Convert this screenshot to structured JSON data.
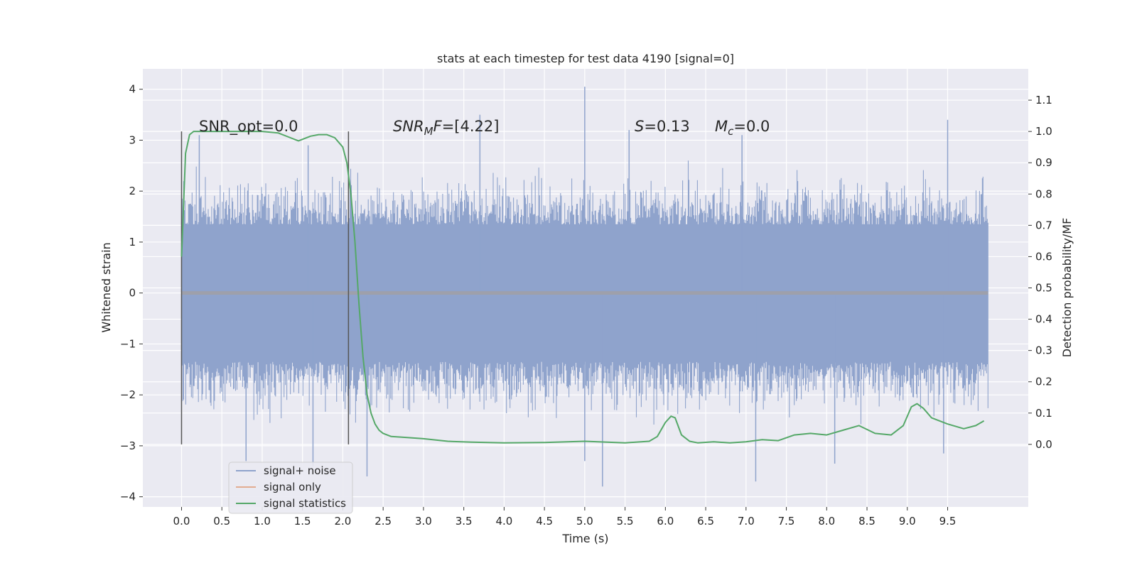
{
  "chart_data": {
    "type": "line",
    "title": "stats at each timestep for test data 4190 [signal=0]",
    "xlabel": "Time (s)",
    "ylabel": "Whitened strain",
    "ylabel_right": "Detection probability/MF",
    "xlim": [
      -0.48,
      10.5
    ],
    "ylim": [
      -4.2,
      4.4
    ],
    "ylim_right": [
      -0.2,
      1.2
    ],
    "x_ticks": [
      "0.0",
      "0.5",
      "1.0",
      "1.5",
      "2.0",
      "2.5",
      "3.0",
      "3.5",
      "4.0",
      "4.5",
      "5.0",
      "5.5",
      "6.0",
      "6.5",
      "7.0",
      "7.5",
      "8.0",
      "8.5",
      "9.0",
      "9.5"
    ],
    "y_ticks_left": [
      "−4",
      "−3",
      "−2",
      "−1",
      "0",
      "1",
      "2",
      "3",
      "4"
    ],
    "y_ticks_right": [
      "0.0",
      "0.1",
      "0.2",
      "0.3",
      "0.4",
      "0.5",
      "0.6",
      "0.7",
      "0.8",
      "0.9",
      "1.0",
      "1.1"
    ],
    "grid": true,
    "legend_position": "lower-left",
    "colors": {
      "plot_bg": "#eaeaf2",
      "grid": "#ffffff",
      "signal_noise": "#8fa3cc",
      "signal_only": "#dd8452",
      "statistics": "#55a868",
      "vline": "#555555"
    },
    "series": [
      {
        "name": "signal+ noise",
        "axis": "left",
        "x_range": [
          0.0,
          10.0
        ],
        "envelope_max": 2.0,
        "envelope_min": -2.1,
        "spikes": [
          {
            "x": 0.22,
            "y": 3.1
          },
          {
            "x": 1.57,
            "y": 2.9
          },
          {
            "x": 3.7,
            "y": 3.5
          },
          {
            "x": 5.0,
            "y": 4.05
          },
          {
            "x": 5.55,
            "y": 3.2
          },
          {
            "x": 6.95,
            "y": 3.1
          },
          {
            "x": 9.5,
            "y": 3.4
          },
          {
            "x": 0.8,
            "y": -3.3
          },
          {
            "x": 1.63,
            "y": -3.4
          },
          {
            "x": 2.3,
            "y": -3.6
          },
          {
            "x": 5.0,
            "y": -3.3
          },
          {
            "x": 5.22,
            "y": -3.8
          },
          {
            "x": 7.12,
            "y": -3.7
          },
          {
            "x": 8.1,
            "y": -3.35
          },
          {
            "x": 9.45,
            "y": -3.15
          }
        ]
      },
      {
        "name": "signal only",
        "axis": "left",
        "x": [
          0.0,
          10.0
        ],
        "y": [
          0.0,
          0.0
        ]
      },
      {
        "name": "signal statistics",
        "axis": "right",
        "x": [
          0.0,
          0.05,
          0.1,
          0.15,
          0.2,
          0.3,
          0.5,
          0.8,
          1.0,
          1.2,
          1.35,
          1.45,
          1.5,
          1.6,
          1.7,
          1.8,
          1.9,
          2.0,
          2.05,
          2.1,
          2.15,
          2.2,
          2.25,
          2.3,
          2.35,
          2.4,
          2.45,
          2.5,
          2.6,
          2.8,
          3.0,
          3.3,
          3.6,
          4.0,
          4.5,
          5.0,
          5.5,
          5.8,
          5.9,
          6.0,
          6.07,
          6.12,
          6.2,
          6.3,
          6.4,
          6.6,
          6.8,
          7.0,
          7.2,
          7.4,
          7.6,
          7.8,
          8.0,
          8.2,
          8.4,
          8.6,
          8.8,
          8.95,
          9.05,
          9.12,
          9.2,
          9.3,
          9.5,
          9.7,
          9.85,
          9.95
        ],
        "y": [
          0.6,
          0.93,
          0.99,
          1.0,
          1.0,
          1.0,
          1.0,
          1.0,
          1.0,
          0.995,
          0.98,
          0.97,
          0.975,
          0.985,
          0.99,
          0.99,
          0.98,
          0.95,
          0.9,
          0.8,
          0.65,
          0.45,
          0.28,
          0.16,
          0.1,
          0.065,
          0.045,
          0.035,
          0.025,
          0.022,
          0.018,
          0.01,
          0.007,
          0.005,
          0.006,
          0.01,
          0.005,
          0.01,
          0.025,
          0.07,
          0.09,
          0.085,
          0.03,
          0.01,
          0.005,
          0.008,
          0.005,
          0.008,
          0.015,
          0.012,
          0.03,
          0.035,
          0.03,
          0.045,
          0.06,
          0.035,
          0.03,
          0.06,
          0.12,
          0.13,
          0.115,
          0.085,
          0.065,
          0.05,
          0.06,
          0.075
        ]
      }
    ],
    "vlines": [
      0.0,
      2.07
    ],
    "annotations": {
      "snr_opt": "SNR_opt=0.0",
      "snr_mf_prefix": "SNR",
      "snr_mf_sub": "M",
      "snr_mf_f": "F",
      "snr_mf_value": "=[4.22]",
      "s_italic": "S",
      "s_value": "=0.13",
      "mc_m": "M",
      "mc_sub": "c",
      "mc_value": "=0.0"
    },
    "legend": [
      "signal+ noise",
      "signal only",
      "signal statistics"
    ]
  }
}
